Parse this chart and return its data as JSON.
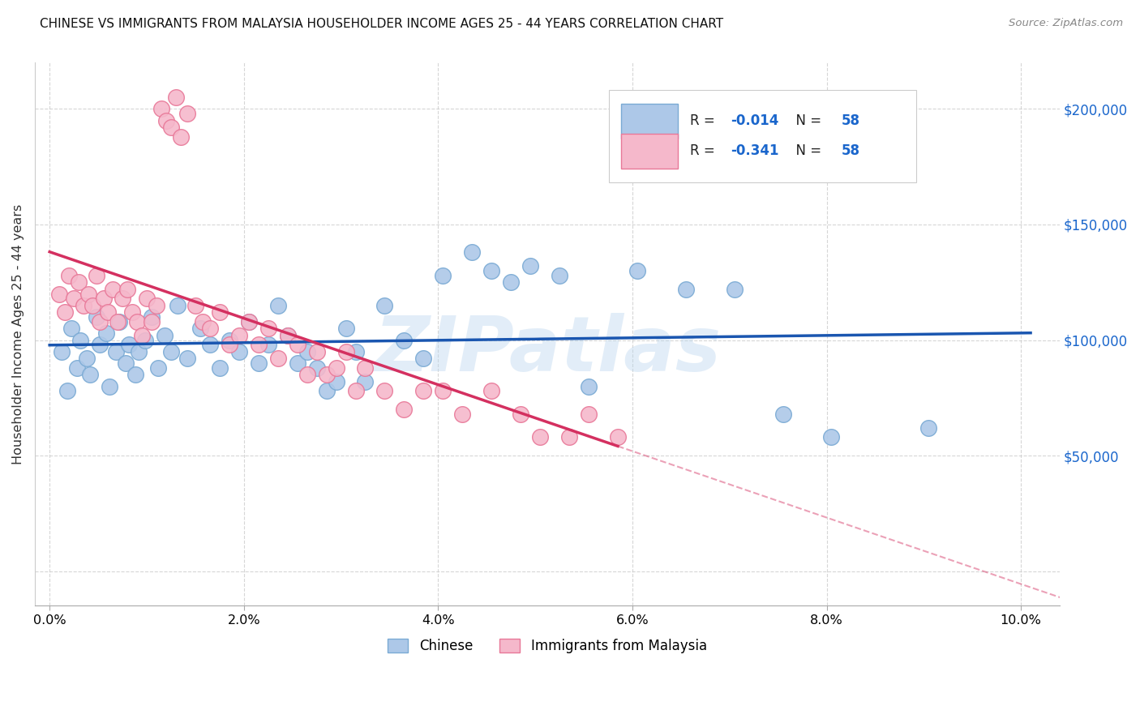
{
  "title": "CHINESE VS IMMIGRANTS FROM MALAYSIA HOUSEHOLDER INCOME AGES 25 - 44 YEARS CORRELATION CHART",
  "source": "Source: ZipAtlas.com",
  "ylabel": "Householder Income Ages 25 - 44 years",
  "legend_r_chinese": "-0.014",
  "legend_n_chinese": "58",
  "legend_r_malaysia": "-0.341",
  "legend_n_malaysia": "58",
  "chinese_color": "#adc8e8",
  "malaysia_color": "#f5b8cb",
  "chinese_edge": "#7aaad4",
  "malaysia_edge": "#e87898",
  "trend_chinese_color": "#1a56b0",
  "trend_malaysia_color": "#d43060",
  "watermark_color": "#b8d4ee",
  "chinese_x": [
    0.12,
    0.18,
    0.22,
    0.28,
    0.32,
    0.38,
    0.42,
    0.48,
    0.52,
    0.58,
    0.62,
    0.68,
    0.72,
    0.78,
    0.82,
    0.88,
    0.92,
    0.98,
    1.05,
    1.12,
    1.18,
    1.25,
    1.32,
    1.42,
    1.55,
    1.65,
    1.75,
    1.85,
    1.95,
    2.05,
    2.15,
    2.25,
    2.35,
    2.45,
    2.55,
    2.65,
    2.75,
    2.85,
    2.95,
    3.05,
    3.15,
    3.25,
    3.45,
    3.65,
    3.85,
    4.05,
    4.35,
    4.55,
    4.75,
    4.95,
    5.25,
    5.55,
    6.05,
    6.55,
    7.05,
    7.55,
    8.05,
    9.05
  ],
  "chinese_y": [
    95000,
    78000,
    105000,
    88000,
    100000,
    92000,
    85000,
    110000,
    98000,
    103000,
    80000,
    95000,
    108000,
    90000,
    98000,
    85000,
    95000,
    100000,
    110000,
    88000,
    102000,
    95000,
    115000,
    92000,
    105000,
    98000,
    88000,
    100000,
    95000,
    108000,
    90000,
    98000,
    115000,
    102000,
    90000,
    95000,
    88000,
    78000,
    82000,
    105000,
    95000,
    82000,
    115000,
    100000,
    92000,
    128000,
    138000,
    130000,
    125000,
    132000,
    128000,
    80000,
    130000,
    122000,
    122000,
    68000,
    58000,
    62000
  ],
  "malaysia_x": [
    0.1,
    0.16,
    0.2,
    0.25,
    0.3,
    0.35,
    0.4,
    0.44,
    0.48,
    0.52,
    0.56,
    0.6,
    0.65,
    0.7,
    0.75,
    0.8,
    0.85,
    0.9,
    0.95,
    1.0,
    1.05,
    1.1,
    1.15,
    1.2,
    1.25,
    1.3,
    1.35,
    1.42,
    1.5,
    1.58,
    1.65,
    1.75,
    1.85,
    1.95,
    2.05,
    2.15,
    2.25,
    2.35,
    2.45,
    2.55,
    2.65,
    2.75,
    2.85,
    2.95,
    3.05,
    3.15,
    3.25,
    3.45,
    3.65,
    3.85,
    4.05,
    4.25,
    4.55,
    4.85,
    5.05,
    5.35,
    5.55,
    5.85
  ],
  "malaysia_y": [
    120000,
    112000,
    128000,
    118000,
    125000,
    115000,
    120000,
    115000,
    128000,
    108000,
    118000,
    112000,
    122000,
    108000,
    118000,
    122000,
    112000,
    108000,
    102000,
    118000,
    108000,
    115000,
    200000,
    195000,
    192000,
    205000,
    188000,
    198000,
    115000,
    108000,
    105000,
    112000,
    98000,
    102000,
    108000,
    98000,
    105000,
    92000,
    102000,
    98000,
    85000,
    95000,
    85000,
    88000,
    95000,
    78000,
    88000,
    78000,
    70000,
    78000,
    78000,
    68000,
    78000,
    68000,
    58000,
    58000,
    68000,
    58000
  ]
}
